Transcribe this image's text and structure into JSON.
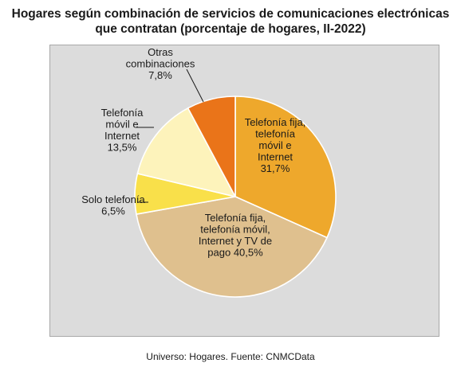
{
  "chart_data": {
    "type": "pie",
    "title_lines": [
      "Hogares según combinación de servicios de comunicaciones electrónicas",
      "que contratan (porcentaje de hogares, II-2022)"
    ],
    "slices": [
      {
        "label_lines": [
          "Telefonía fija,",
          "telefonía",
          "móvil e",
          "Internet"
        ],
        "value": 31.7,
        "value_text": "31,7%",
        "color": "#eea82c"
      },
      {
        "label_lines": [
          "Telefonía fija,",
          "telefonía móvil,",
          "Internet y TV de"
        ],
        "value": 40.5,
        "value_text": "pago 40,5%",
        "color": "#dfc08e"
      },
      {
        "label_lines": [
          "Solo telefonía"
        ],
        "value": 6.5,
        "value_text": "6,5%",
        "color": "#f9e04a"
      },
      {
        "label_lines": [
          "Telefonía",
          "móvil e",
          "Internet"
        ],
        "value": 13.5,
        "value_text": "13,5%",
        "color": "#fdf3bb"
      },
      {
        "label_lines": [
          "Otras",
          "combinaciones"
        ],
        "value": 7.8,
        "value_text": "7,8%",
        "color": "#ea7419"
      }
    ],
    "footer": "Universo: Hogares. Fuente: CNMCData"
  }
}
